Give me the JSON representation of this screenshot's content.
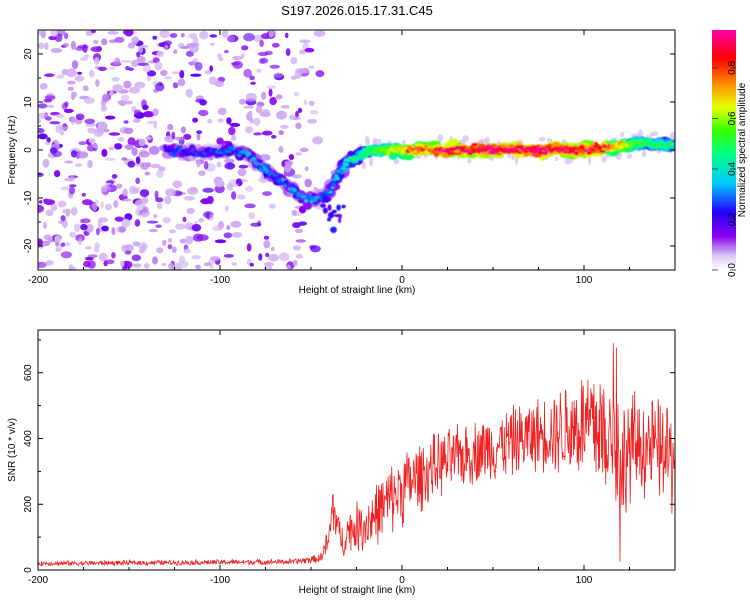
{
  "title": "S197.2026.015.17.31.C45",
  "chart_data": [
    {
      "type": "heatmap",
      "name": "spectrogram",
      "xlabel": "Height of straight line (km)",
      "ylabel": "Frequency (Hz)",
      "xlim": [
        -200,
        150
      ],
      "ylim": [
        -25,
        25
      ],
      "xticks": [
        -200,
        -100,
        0,
        100
      ],
      "yticks": [
        -20,
        -10,
        0,
        10,
        20
      ],
      "colorbar": {
        "label": "Normalized spectral amplitude",
        "range": [
          0,
          0.95
        ],
        "ticks": [
          0.0,
          0.2,
          0.4,
          0.6,
          0.8
        ],
        "colors": [
          "#e8dcf8",
          "#8800ee",
          "#2200ff",
          "#00ffff",
          "#00ff00",
          "#ffff00",
          "#ff8800",
          "#ff0000",
          "#ff00aa"
        ]
      },
      "signal_track": {
        "x": [
          -130,
          -110,
          -95,
          -85,
          -75,
          -65,
          -58,
          -52,
          -45,
          -40,
          -35,
          -30,
          -20,
          -10,
          0,
          20,
          50,
          80,
          110,
          130,
          150
        ],
        "y": [
          0,
          -0.5,
          0,
          -1,
          -4,
          -7,
          -9,
          -10.5,
          -10,
          -9,
          -5,
          -2.5,
          -0.5,
          0,
          0,
          0,
          0,
          0,
          0.3,
          1.5,
          1
        ],
        "amplitude": [
          0.25,
          0.25,
          0.3,
          0.3,
          0.3,
          0.3,
          0.3,
          0.3,
          0.3,
          0.3,
          0.35,
          0.4,
          0.5,
          0.6,
          0.7,
          0.85,
          0.9,
          0.9,
          0.85,
          0.55,
          0.45
        ]
      },
      "noise_region": {
        "x_range": [
          -200,
          -55
        ],
        "y_range": [
          -25,
          25
        ]
      }
    },
    {
      "type": "line",
      "name": "snr",
      "xlabel": "Height of straight line (km)",
      "ylabel": "SNR (10 * v/v)",
      "xlim": [
        -200,
        150
      ],
      "ylim": [
        0,
        730
      ],
      "xticks": [
        -200,
        -100,
        0,
        100
      ],
      "yticks": [
        0,
        200,
        400,
        600
      ],
      "color": "#ee2222",
      "envelope": {
        "x": [
          -200,
          -60,
          -45,
          -40,
          -38,
          -35,
          -32,
          -30,
          -20,
          0,
          20,
          40,
          60,
          80,
          90,
          100,
          110,
          115,
          120,
          130,
          140,
          150
        ],
        "mean": [
          20,
          25,
          35,
          90,
          200,
          120,
          80,
          120,
          140,
          250,
          320,
          360,
          390,
          420,
          430,
          440,
          430,
          420,
          350,
          380,
          370,
          330
        ],
        "spread": [
          8,
          10,
          15,
          60,
          110,
          60,
          50,
          70,
          100,
          130,
          110,
          110,
          120,
          130,
          170,
          200,
          250,
          200,
          220,
          180,
          170,
          200
        ]
      }
    }
  ]
}
